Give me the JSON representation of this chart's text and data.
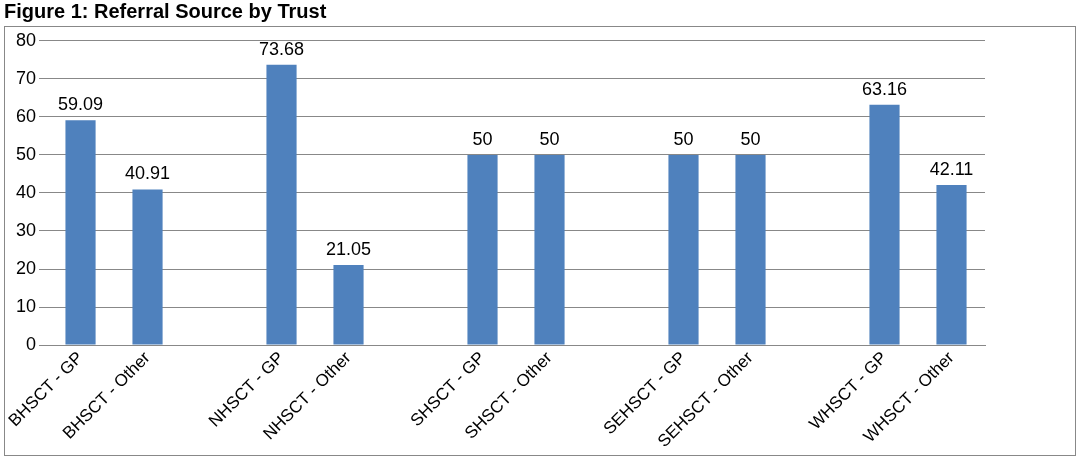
{
  "chart_data": {
    "type": "bar",
    "title": "Figure 1: Referral Source by Trust",
    "categories": [
      "BHSCT - GP",
      "BHSCT - Other",
      null,
      "NHSCT - GP",
      "NHSCT - Other",
      null,
      "SHSCT - GP",
      "SHSCT - Other",
      null,
      "SEHSCT - GP",
      "SEHSCT - Other",
      null,
      "WHSCT - GP",
      "WHSCT - Other"
    ],
    "values": [
      59.09,
      40.91,
      null,
      73.68,
      21.05,
      null,
      50,
      50,
      null,
      50,
      50,
      null,
      63.16,
      42.11
    ],
    "color": "#4f81bd",
    "ylim": [
      0,
      80
    ],
    "yticks": [
      0,
      10,
      20,
      30,
      40,
      50,
      60,
      70,
      80
    ],
    "grid": "y",
    "legend": false,
    "data_labels": true
  }
}
